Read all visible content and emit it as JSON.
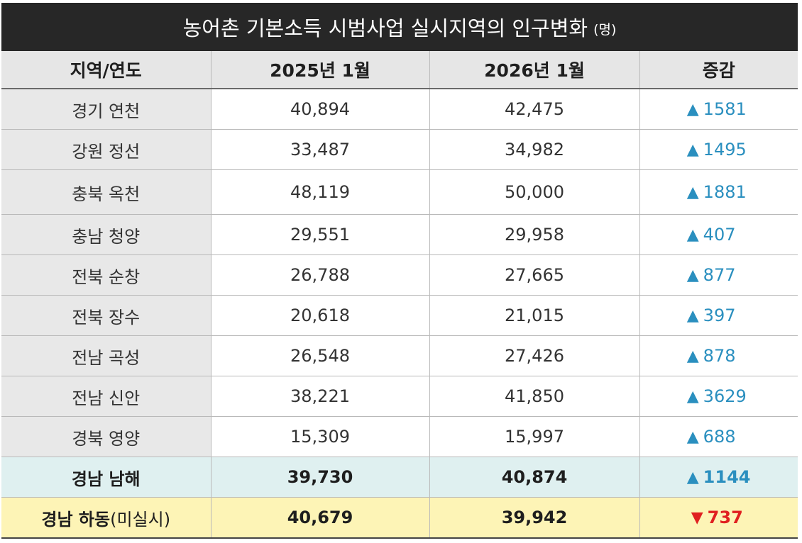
{
  "title": "농어촌 기본소득 시범사업 실시지역의 인구변화",
  "unit": "(명)",
  "headers": [
    "지역/연도",
    "2025년 1월",
    "2026년 1월",
    "증감"
  ],
  "colors": {
    "up": "#2a8fbf",
    "down": "#e02020",
    "title_bg": "#272727",
    "highlight_blue": "#dff0f0",
    "highlight_yellow": "#fdf4b6"
  },
  "rows": [
    {
      "region": "경기 연천",
      "y2025": "40,894",
      "y2026": "42,475",
      "dir": "▲",
      "change": "1581"
    },
    {
      "region": "강원 정선",
      "y2025": "33,487",
      "y2026": "34,982",
      "dir": "▲",
      "change": "1495"
    },
    {
      "region": "충북 옥천",
      "y2025": "48,119",
      "y2026": "50,000",
      "dir": "▲",
      "change": "1881"
    },
    {
      "region": "충남 청양",
      "y2025": "29,551",
      "y2026": "29,958",
      "dir": "▲",
      "change": "407"
    },
    {
      "region": "전북 순창",
      "y2025": "26,788",
      "y2026": "27,665",
      "dir": "▲",
      "change": "877"
    },
    {
      "region": "전북 장수",
      "y2025": "20,618",
      "y2026": "21,015",
      "dir": "▲",
      "change": "397"
    },
    {
      "region": "전남 곡성",
      "y2025": "26,548",
      "y2026": "27,426",
      "dir": "▲",
      "change": "878"
    },
    {
      "region": "전남 신안",
      "y2025": "38,221",
      "y2026": "41,850",
      "dir": "▲",
      "change": "3629"
    },
    {
      "region": "경북 영양",
      "y2025": "15,309",
      "y2026": "15,997",
      "dir": "▲",
      "change": "688"
    },
    {
      "region": "경남 남해",
      "y2025": "39,730",
      "y2026": "40,874",
      "dir": "▲",
      "change": "1144"
    },
    {
      "region": "경남 하동",
      "region_note": "(미실시)",
      "y2025": "40,679",
      "y2026": "39,942",
      "dir": "▼",
      "change": "737"
    }
  ]
}
